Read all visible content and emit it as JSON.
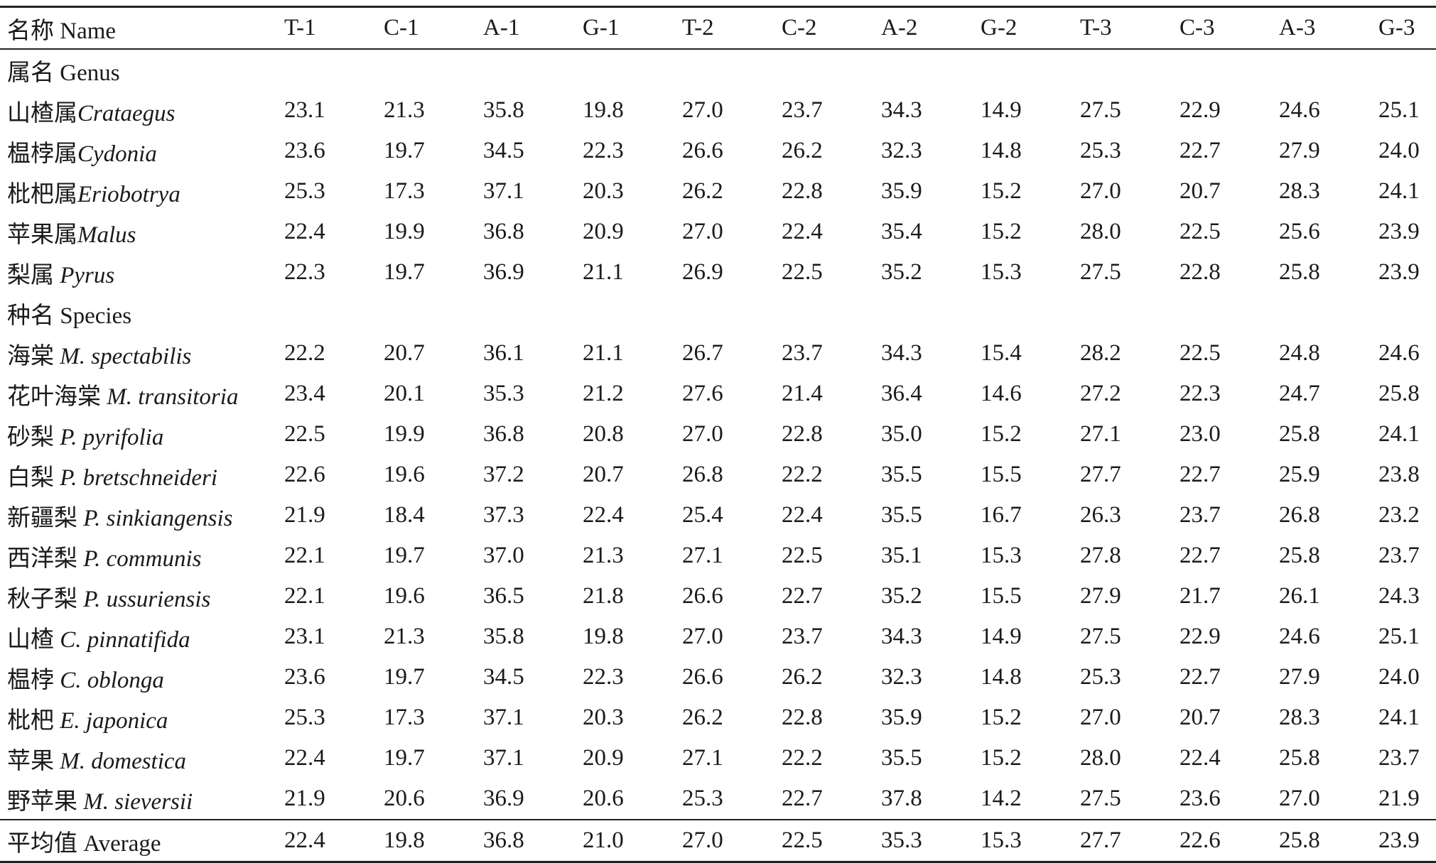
{
  "table": {
    "columns": [
      "名称 Name",
      "T-1",
      "C-1",
      "A-1",
      "G-1",
      "T-2",
      "C-2",
      "A-2",
      "G-2",
      "T-3",
      "C-3",
      "A-3",
      "G-3"
    ],
    "sections": [
      {
        "label": "属名 Genus",
        "rows": [
          {
            "cn": "山楂属",
            "sci": "Crataegus",
            "values": [
              "23.1",
              "21.3",
              "35.8",
              "19.8",
              "27.0",
              "23.7",
              "34.3",
              "14.9",
              "27.5",
              "22.9",
              "24.6",
              "25.1"
            ]
          },
          {
            "cn": "榅桲属",
            "sci": "Cydonia",
            "values": [
              "23.6",
              "19.7",
              "34.5",
              "22.3",
              "26.6",
              "26.2",
              "32.3",
              "14.8",
              "25.3",
              "22.7",
              "27.9",
              "24.0"
            ]
          },
          {
            "cn": "枇杷属",
            "sci": "Eriobotrya",
            "values": [
              "25.3",
              "17.3",
              "37.1",
              "20.3",
              "26.2",
              "22.8",
              "35.9",
              "15.2",
              "27.0",
              "20.7",
              "28.3",
              "24.1"
            ]
          },
          {
            "cn": "苹果属",
            "sci": "Malus",
            "values": [
              "22.4",
              "19.9",
              "36.8",
              "20.9",
              "27.0",
              "22.4",
              "35.4",
              "15.2",
              "28.0",
              "22.5",
              "25.6",
              "23.9"
            ]
          },
          {
            "cn": "梨属 ",
            "sci": "Pyrus",
            "values": [
              "22.3",
              "19.7",
              "36.9",
              "21.1",
              "26.9",
              "22.5",
              "35.2",
              "15.3",
              "27.5",
              "22.8",
              "25.8",
              "23.9"
            ]
          }
        ]
      },
      {
        "label": "种名 Species",
        "rows": [
          {
            "cn": "海棠 ",
            "sci": "M. spectabilis",
            "values": [
              "22.2",
              "20.7",
              "36.1",
              "21.1",
              "26.7",
              "23.7",
              "34.3",
              "15.4",
              "28.2",
              "22.5",
              "24.8",
              "24.6"
            ]
          },
          {
            "cn": "花叶海棠 ",
            "sci": "M. transitoria",
            "values": [
              "23.4",
              "20.1",
              "35.3",
              "21.2",
              "27.6",
              "21.4",
              "36.4",
              "14.6",
              "27.2",
              "22.3",
              "24.7",
              "25.8"
            ]
          },
          {
            "cn": "砂梨 ",
            "sci": "P. pyrifolia",
            "values": [
              "22.5",
              "19.9",
              "36.8",
              "20.8",
              "27.0",
              "22.8",
              "35.0",
              "15.2",
              "27.1",
              "23.0",
              "25.8",
              "24.1"
            ]
          },
          {
            "cn": "白梨 ",
            "sci": "P. bretschneideri",
            "values": [
              "22.6",
              "19.6",
              "37.2",
              "20.7",
              "26.8",
              "22.2",
              "35.5",
              "15.5",
              "27.7",
              "22.7",
              "25.9",
              "23.8"
            ]
          },
          {
            "cn": "新疆梨 ",
            "sci": "P. sinkiangensis",
            "values": [
              "21.9",
              "18.4",
              "37.3",
              "22.4",
              "25.4",
              "22.4",
              "35.5",
              "16.7",
              "26.3",
              "23.7",
              "26.8",
              "23.2"
            ]
          },
          {
            "cn": "西洋梨 ",
            "sci": "P. communis",
            "values": [
              "22.1",
              "19.7",
              "37.0",
              "21.3",
              "27.1",
              "22.5",
              "35.1",
              "15.3",
              "27.8",
              "22.7",
              "25.8",
              "23.7"
            ]
          },
          {
            "cn": "秋子梨 ",
            "sci": "P. ussuriensis",
            "values": [
              "22.1",
              "19.6",
              "36.5",
              "21.8",
              "26.6",
              "22.7",
              "35.2",
              "15.5",
              "27.9",
              "21.7",
              "26.1",
              "24.3"
            ]
          },
          {
            "cn": "山楂 ",
            "sci": "C. pinnatifida",
            "values": [
              "23.1",
              "21.3",
              "35.8",
              "19.8",
              "27.0",
              "23.7",
              "34.3",
              "14.9",
              "27.5",
              "22.9",
              "24.6",
              "25.1"
            ]
          },
          {
            "cn": "榅桲 ",
            "sci": "C. oblonga",
            "values": [
              "23.6",
              "19.7",
              "34.5",
              "22.3",
              "26.6",
              "26.2",
              "32.3",
              "14.8",
              "25.3",
              "22.7",
              "27.9",
              "24.0"
            ]
          },
          {
            "cn": "枇杷 ",
            "sci": "E. japonica",
            "values": [
              "25.3",
              "17.3",
              "37.1",
              "20.3",
              "26.2",
              "22.8",
              "35.9",
              "15.2",
              "27.0",
              "20.7",
              "28.3",
              "24.1"
            ]
          },
          {
            "cn": "苹果 ",
            "sci": "M. domestica",
            "values": [
              "22.4",
              "19.7",
              "37.1",
              "20.9",
              "27.1",
              "22.2",
              "35.5",
              "15.2",
              "28.0",
              "22.4",
              "25.8",
              "23.7"
            ]
          },
          {
            "cn": "野苹果 ",
            "sci": "M. sieversii",
            "values": [
              "21.9",
              "20.6",
              "36.9",
              "20.6",
              "25.3",
              "22.7",
              "37.8",
              "14.2",
              "27.5",
              "23.6",
              "27.0",
              "21.9"
            ]
          }
        ]
      }
    ],
    "average": {
      "label": "平均值 Average",
      "values": [
        "22.4",
        "19.8",
        "36.8",
        "21.0",
        "27.0",
        "22.5",
        "35.3",
        "15.3",
        "27.7",
        "22.6",
        "25.8",
        "23.9"
      ]
    }
  }
}
